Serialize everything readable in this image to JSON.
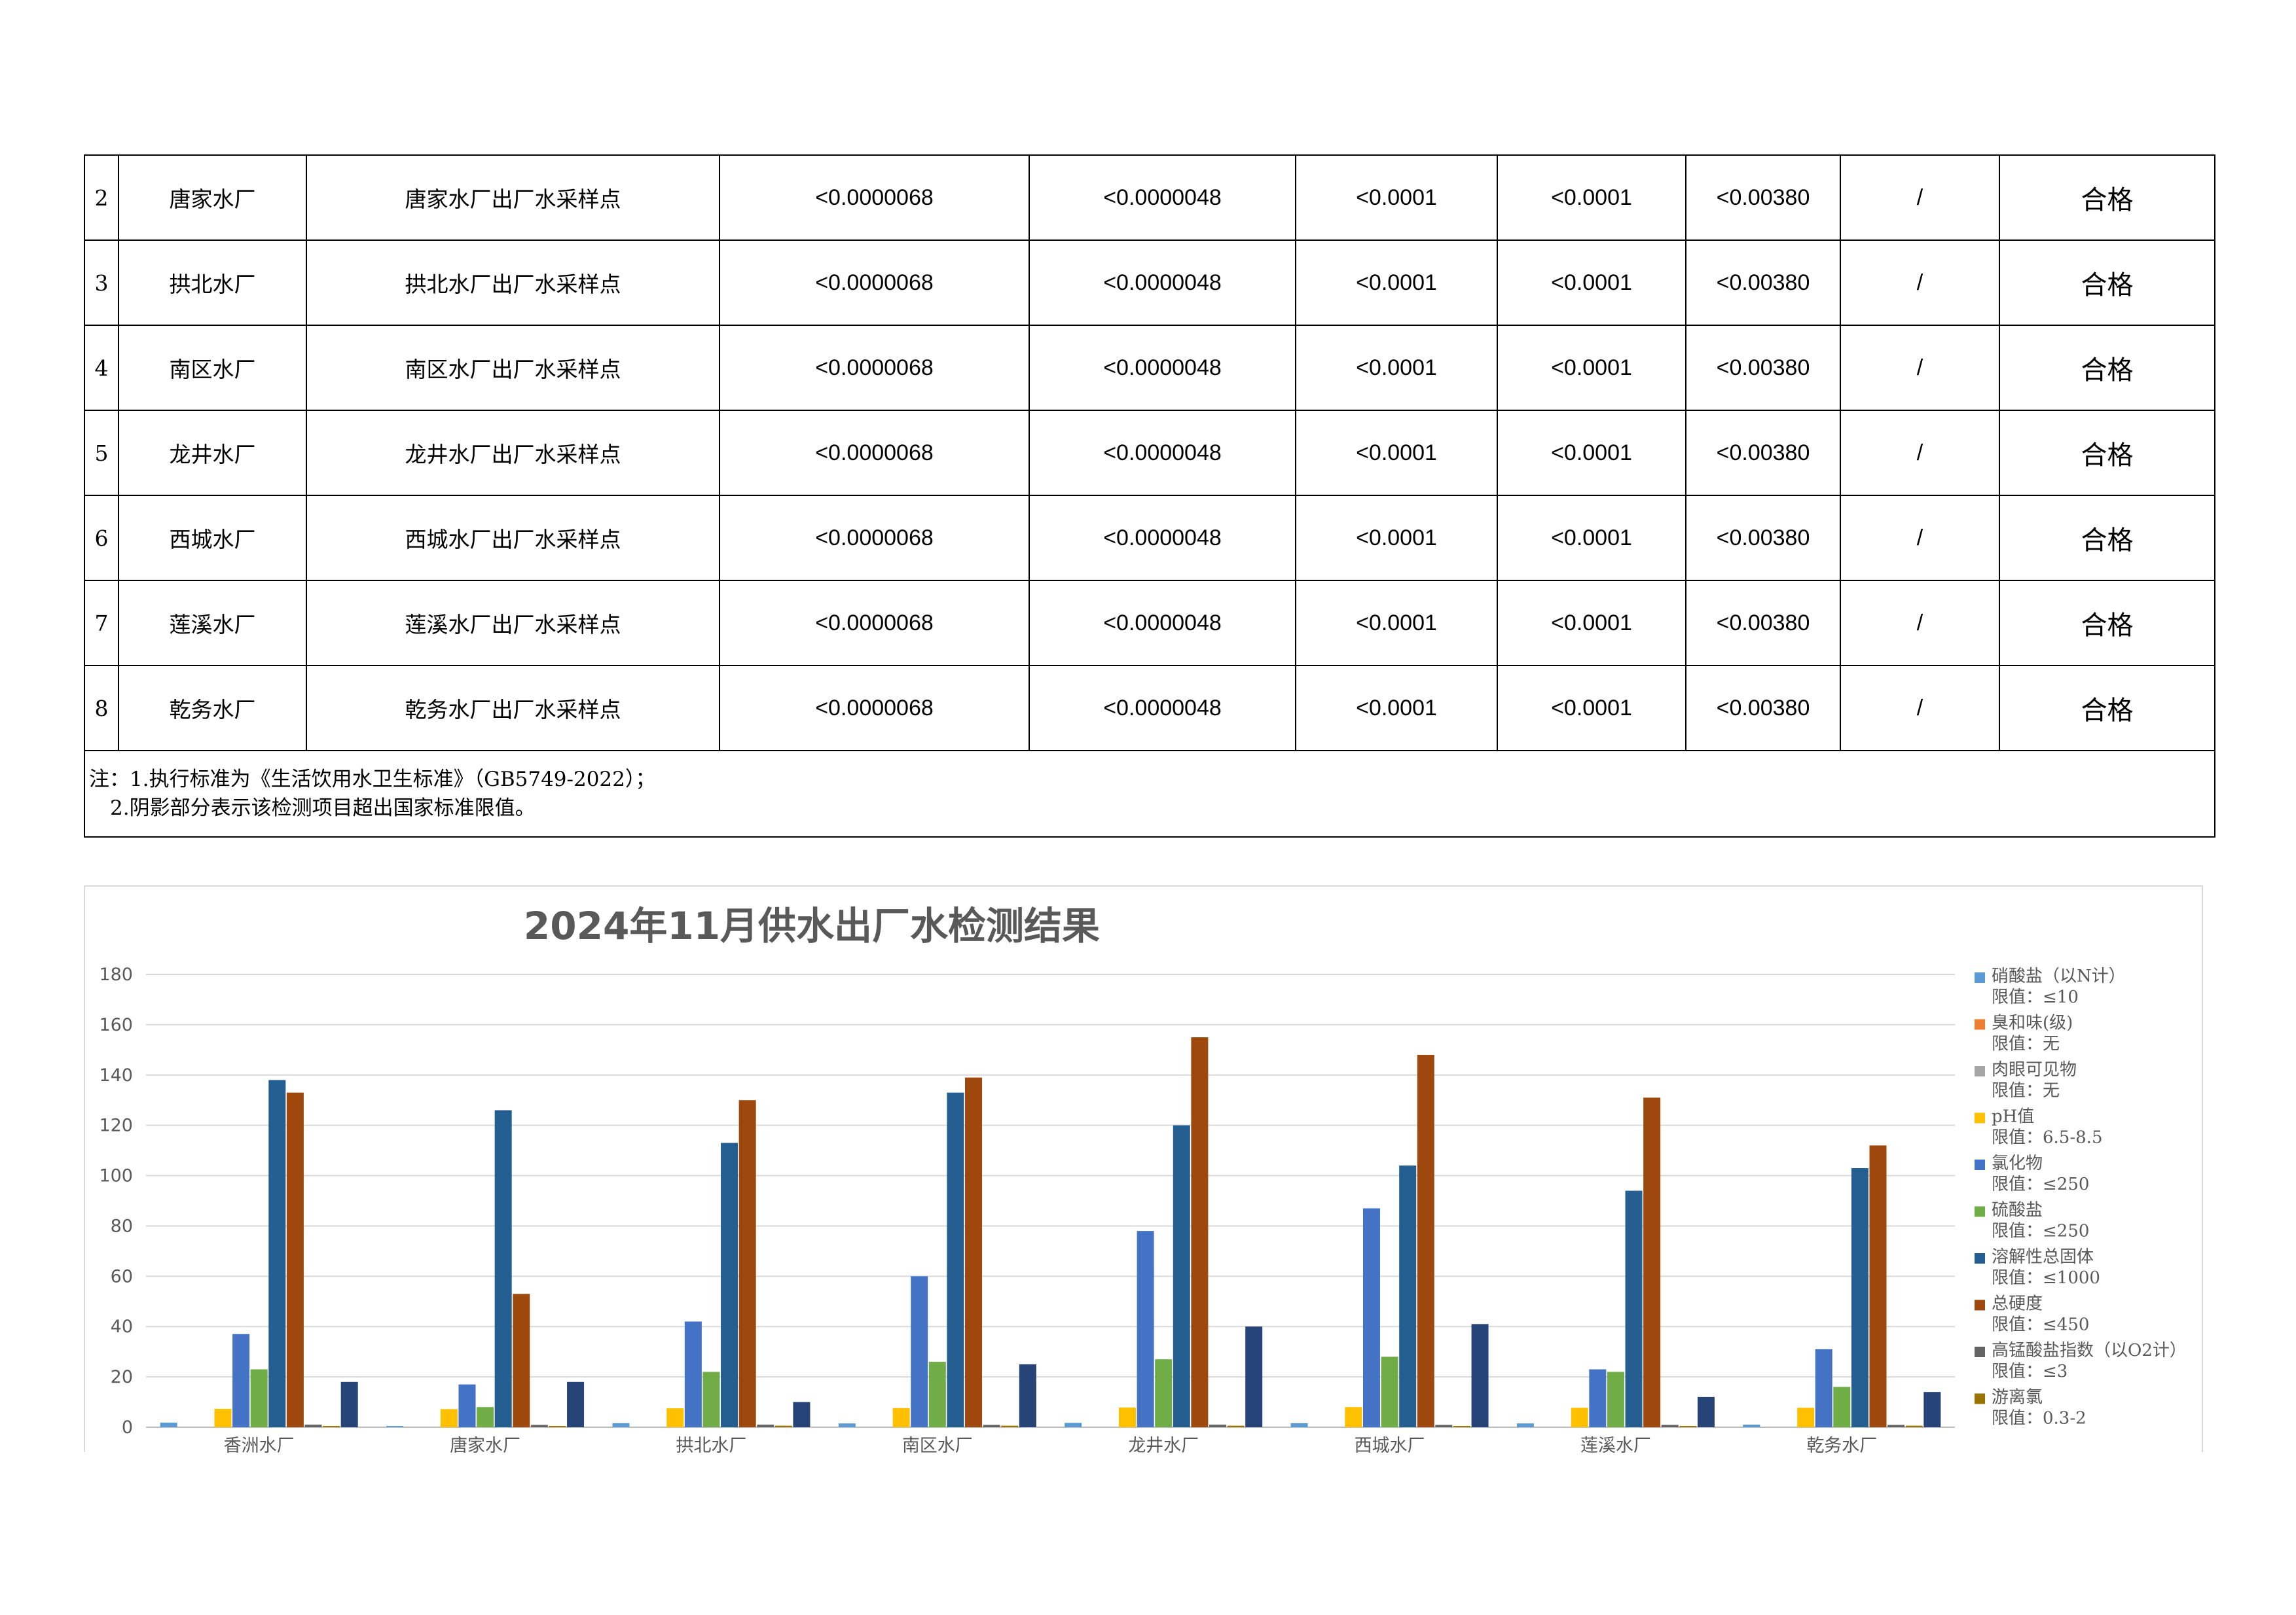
{
  "table": {
    "rows": [
      {
        "no": "2",
        "plant": "唐家水厂",
        "site": "唐家水厂出厂水采样点",
        "v1": "<0.0000068",
        "v2": "<0.0000048",
        "v3": "<0.0001",
        "v4": "<0.0001",
        "v5": "<0.00380",
        "v6": "/",
        "result": "合格"
      },
      {
        "no": "3",
        "plant": "拱北水厂",
        "site": "拱北水厂出厂水采样点",
        "v1": "<0.0000068",
        "v2": "<0.0000048",
        "v3": "<0.0001",
        "v4": "<0.0001",
        "v5": "<0.00380",
        "v6": "/",
        "result": "合格"
      },
      {
        "no": "4",
        "plant": "南区水厂",
        "site": "南区水厂出厂水采样点",
        "v1": "<0.0000068",
        "v2": "<0.0000048",
        "v3": "<0.0001",
        "v4": "<0.0001",
        "v5": "<0.00380",
        "v6": "/",
        "result": "合格"
      },
      {
        "no": "5",
        "plant": "龙井水厂",
        "site": "龙井水厂出厂水采样点",
        "v1": "<0.0000068",
        "v2": "<0.0000048",
        "v3": "<0.0001",
        "v4": "<0.0001",
        "v5": "<0.00380",
        "v6": "/",
        "result": "合格"
      },
      {
        "no": "6",
        "plant": "西城水厂",
        "site": "西城水厂出厂水采样点",
        "v1": "<0.0000068",
        "v2": "<0.0000048",
        "v3": "<0.0001",
        "v4": "<0.0001",
        "v5": "<0.00380",
        "v6": "/",
        "result": "合格"
      },
      {
        "no": "7",
        "plant": "莲溪水厂",
        "site": "莲溪水厂出厂水采样点",
        "v1": "<0.0000068",
        "v2": "<0.0000048",
        "v3": "<0.0001",
        "v4": "<0.0001",
        "v5": "<0.00380",
        "v6": "/",
        "result": "合格"
      },
      {
        "no": "8",
        "plant": "乾务水厂",
        "site": "乾务水厂出厂水采样点",
        "v1": "<0.0000068",
        "v2": "<0.0000048",
        "v3": "<0.0001",
        "v4": "<0.0001",
        "v5": "<0.00380",
        "v6": "/",
        "result": "合格"
      }
    ],
    "note_line1": "注：1.执行标准为《生活饮用水卫生标准》（GB5749-2022）；",
    "note_line2": "2.阴影部分表示该检测项目超出国家标准限值。"
  },
  "chart_data": {
    "type": "bar",
    "title": "2024年11月供水出厂水检测结果",
    "categories": [
      "香洲水厂",
      "唐家水厂",
      "拱北水厂",
      "南区水厂",
      "龙井水厂",
      "西城水厂",
      "莲溪水厂",
      "乾务水厂"
    ],
    "ylim": [
      0,
      180
    ],
    "yticks": [
      "0",
      "20",
      "40",
      "60",
      "80",
      "100",
      "120",
      "140",
      "160",
      "180"
    ],
    "grid": true,
    "legend_position": "right",
    "series": [
      {
        "name": "硝酸盐（以N计）",
        "limit": "限值：≤10",
        "color": "#5b9bd5",
        "values": [
          1.8,
          0.5,
          1.6,
          1.5,
          1.7,
          1.6,
          1.5,
          1.0
        ]
      },
      {
        "name": "臭和味(级)",
        "limit": "限值：无",
        "color": "#ed7d31",
        "values": [
          0,
          0,
          0,
          0,
          0,
          0,
          0,
          0
        ]
      },
      {
        "name": "肉眼可见物",
        "limit": "限值：无",
        "color": "#a5a5a5",
        "values": [
          0,
          0,
          0,
          0,
          0,
          0,
          0,
          0
        ]
      },
      {
        "name": "pH值",
        "limit": "限值：6.5-8.5",
        "color": "#ffc000",
        "values": [
          7.3,
          7.2,
          7.5,
          7.6,
          7.8,
          8.0,
          7.7,
          7.7
        ]
      },
      {
        "name": "氯化物",
        "limit": "限值：≤250",
        "color": "#4472c4",
        "values": [
          37,
          17,
          42,
          60,
          78,
          87,
          23,
          31
        ]
      },
      {
        "name": "硫酸盐",
        "limit": "限值：≤250",
        "color": "#70ad47",
        "values": [
          23,
          8,
          22,
          26,
          27,
          28,
          22,
          16
        ]
      },
      {
        "name": "溶解性总固体",
        "limit": "限值：≤1000",
        "color": "#255e91",
        "values": [
          138,
          126,
          113,
          133,
          120,
          104,
          94,
          103
        ]
      },
      {
        "name": "总硬度",
        "limit": "限值：≤450",
        "color": "#9e480e",
        "values": [
          133,
          53,
          130,
          139,
          155,
          148,
          131,
          112
        ]
      },
      {
        "name": "高锰酸盐指数（以O2计）",
        "limit": "限值：≤3",
        "color": "#636363",
        "values": [
          1.0,
          0.9,
          1.0,
          0.9,
          1.0,
          0.9,
          0.9,
          0.9
        ]
      },
      {
        "name": "游离氯",
        "limit": "限值：0.3-2",
        "color": "#997300",
        "values": [
          0.5,
          0.5,
          0.6,
          0.6,
          0.6,
          0.5,
          0.5,
          0.6
        ]
      },
      {
        "name": "",
        "limit": "",
        "color": "#264478",
        "values": [
          18,
          18,
          10,
          25,
          40,
          41,
          12,
          14
        ]
      }
    ]
  }
}
